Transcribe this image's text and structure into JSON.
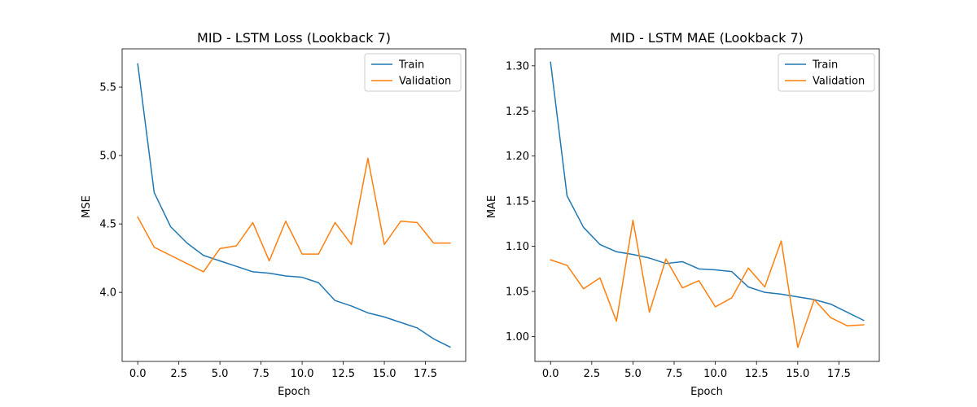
{
  "chart_data": [
    {
      "type": "line",
      "title": "MID - LSTM Loss (Lookback 7)",
      "xlabel": "Epoch",
      "ylabel": "MSE",
      "x": [
        0,
        1,
        2,
        3,
        4,
        5,
        6,
        7,
        8,
        9,
        10,
        11,
        12,
        13,
        14,
        15,
        16,
        17,
        18,
        19
      ],
      "xlim": [
        -0.95,
        19.95
      ],
      "ylim": [
        3.495,
        5.78
      ],
      "xticks": [
        0.0,
        2.5,
        5.0,
        7.5,
        10.0,
        12.5,
        15.0,
        17.5
      ],
      "xtick_labels": [
        "0.0",
        "2.5",
        "5.0",
        "7.5",
        "10.0",
        "12.5",
        "15.0",
        "17.5"
      ],
      "yticks": [
        4.0,
        4.5,
        5.0,
        5.5
      ],
      "ytick_labels": [
        "4.0",
        "4.5",
        "5.0",
        "5.5"
      ],
      "grid": false,
      "legend": "top-right",
      "series": [
        {
          "name": "Train",
          "color": "#1f77b4",
          "values": [
            5.67,
            4.73,
            4.48,
            4.36,
            4.27,
            4.23,
            4.19,
            4.15,
            4.14,
            4.12,
            4.11,
            4.07,
            3.94,
            3.9,
            3.85,
            3.82,
            3.78,
            3.74,
            3.66,
            3.6
          ]
        },
        {
          "name": "Validation",
          "color": "#ff7f0e",
          "values": [
            4.55,
            4.33,
            4.27,
            4.21,
            4.15,
            4.32,
            4.34,
            4.51,
            4.23,
            4.52,
            4.28,
            4.28,
            4.51,
            4.35,
            4.98,
            4.35,
            4.52,
            4.51,
            4.36,
            4.36
          ]
        }
      ]
    },
    {
      "type": "line",
      "title": "MID - LSTM MAE (Lookback 7)",
      "xlabel": "Epoch",
      "ylabel": "MAE",
      "x": [
        0,
        1,
        2,
        3,
        4,
        5,
        6,
        7,
        8,
        9,
        10,
        11,
        12,
        13,
        14,
        15,
        16,
        17,
        18,
        19
      ],
      "xlim": [
        -0.95,
        19.95
      ],
      "ylim": [
        0.9725,
        1.3188
      ],
      "xticks": [
        0.0,
        2.5,
        5.0,
        7.5,
        10.0,
        12.5,
        15.0,
        17.5
      ],
      "xtick_labels": [
        "0.0",
        "2.5",
        "5.0",
        "7.5",
        "10.0",
        "12.5",
        "15.0",
        "17.5"
      ],
      "yticks": [
        1.0,
        1.05,
        1.1,
        1.15,
        1.2,
        1.25,
        1.3
      ],
      "ytick_labels": [
        "1.00",
        "1.05",
        "1.10",
        "1.15",
        "1.20",
        "1.25",
        "1.30"
      ],
      "grid": false,
      "legend": "top-right",
      "series": [
        {
          "name": "Train",
          "color": "#1f77b4",
          "values": [
            1.304,
            1.156,
            1.121,
            1.102,
            1.094,
            1.091,
            1.087,
            1.081,
            1.083,
            1.075,
            1.074,
            1.072,
            1.055,
            1.049,
            1.047,
            1.044,
            1.041,
            1.036,
            1.027,
            1.018
          ]
        },
        {
          "name": "Validation",
          "color": "#ff7f0e",
          "values": [
            1.085,
            1.079,
            1.053,
            1.065,
            1.017,
            1.129,
            1.027,
            1.086,
            1.054,
            1.062,
            1.033,
            1.043,
            1.076,
            1.055,
            1.106,
            0.988,
            1.041,
            1.021,
            1.012,
            1.013
          ]
        }
      ]
    }
  ]
}
